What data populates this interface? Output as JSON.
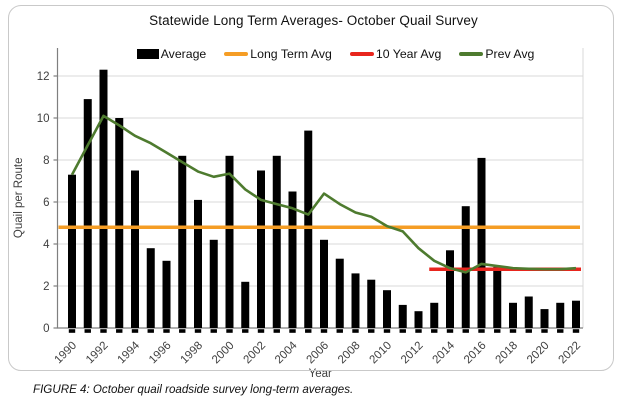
{
  "caption": "FIGURE 4: October quail roadside survey long-term averages.",
  "chart": {
    "title": "Statewide Long Term Averages- October Quail Survey",
    "legend": [
      {
        "label": "Average",
        "swatch": "bar-swatch-icon",
        "color": "#000000"
      },
      {
        "label": "Long Term Avg",
        "swatch": "line-swatch-icon",
        "color": "#F59D25"
      },
      {
        "label": "10 Year Avg",
        "swatch": "line-swatch-icon",
        "color": "#E8251D"
      },
      {
        "label": "Prev Avg",
        "swatch": "line-swatch-icon",
        "color": "#4E7B2F"
      }
    ],
    "colors": {
      "gridline": "#D9D9D9",
      "axis": "#7F7F7F",
      "text": "#3F3F3F",
      "bar": "#000000"
    }
  },
  "chart_data": {
    "type": "bar",
    "title": "Statewide Long Term Averages- October Quail Survey",
    "xlabel": "Year",
    "ylabel": "Quail per Route",
    "ylim": [
      0,
      13
    ],
    "yticks": [
      0,
      2,
      4,
      6,
      8,
      10,
      12
    ],
    "xticks": [
      1990,
      1992,
      1994,
      1996,
      1998,
      2000,
      2002,
      2004,
      2006,
      2008,
      2010,
      2012,
      2014,
      2016,
      2018,
      2020,
      2022
    ],
    "grid": true,
    "legend_position": "top",
    "categories": [
      1990,
      1991,
      1992,
      1993,
      1994,
      1995,
      1996,
      1997,
      1998,
      1999,
      2000,
      2001,
      2002,
      2003,
      2004,
      2005,
      2006,
      2007,
      2008,
      2009,
      2010,
      2011,
      2012,
      2013,
      2014,
      2015,
      2016,
      2017,
      2018,
      2019,
      2020,
      2021,
      2022
    ],
    "series": [
      {
        "name": "Average",
        "type": "bar",
        "color": "#000000",
        "values": [
          7.3,
          10.9,
          12.3,
          10.0,
          7.5,
          3.8,
          3.2,
          8.2,
          6.1,
          4.2,
          8.2,
          2.2,
          7.5,
          8.2,
          6.5,
          9.4,
          4.2,
          3.3,
          2.6,
          2.3,
          1.8,
          1.1,
          0.8,
          1.2,
          3.7,
          5.8,
          8.1,
          2.9,
          1.2,
          1.5,
          0.9,
          1.2,
          1.3
        ]
      },
      {
        "name": "Long Term Avg",
        "type": "line",
        "color": "#F59D25",
        "value": 4.8,
        "span": [
          1990,
          2022
        ]
      },
      {
        "name": "10 Year Avg",
        "type": "line",
        "color": "#E8251D",
        "value": 2.8,
        "span": [
          2013,
          2022
        ]
      },
      {
        "name": "Prev Avg",
        "type": "line",
        "color": "#4E7B2F",
        "values": [
          7.3,
          8.7,
          10.1,
          9.65,
          9.15,
          8.8,
          8.35,
          7.9,
          7.45,
          7.2,
          7.35,
          6.6,
          6.1,
          5.9,
          5.7,
          5.4,
          6.4,
          5.9,
          5.5,
          5.3,
          4.85,
          4.6,
          3.8,
          3.2,
          2.85,
          2.65,
          3.05,
          2.95,
          2.85,
          2.82,
          2.8,
          2.8,
          2.85
        ]
      }
    ]
  }
}
